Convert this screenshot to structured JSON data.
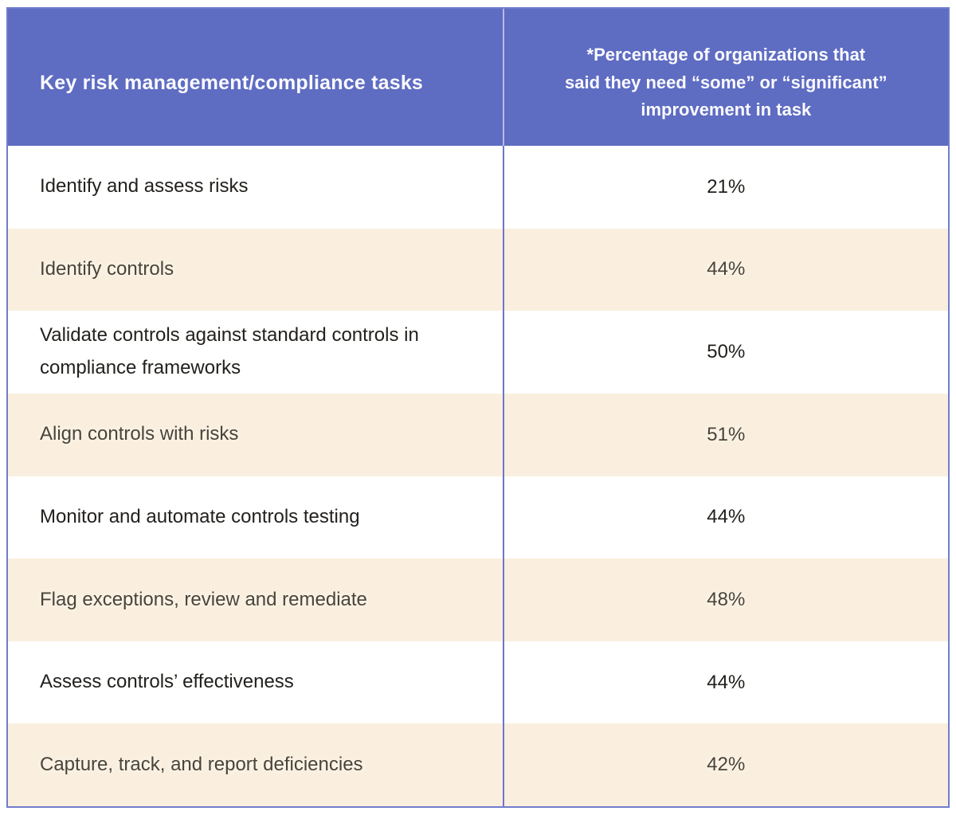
{
  "chart_data": {
    "type": "table",
    "columns": [
      "Key risk management/compliance tasks",
      "*Percentage of organizations that said they need “some” or “significant” improvement in task"
    ],
    "categories": [
      "Identify and assess risks",
      "Identify controls",
      "Validate controls against standard controls in compliance frameworks",
      "Align controls with risks",
      "Monitor and automate controls testing",
      "Flag exceptions, review and remediate",
      "Assess controls’ effectiveness",
      "Capture, track, and report deficiencies"
    ],
    "values": [
      21,
      44,
      50,
      51,
      44,
      48,
      44,
      42
    ],
    "value_unit": "%",
    "layout": "two-column table, purple header, alternating white/cream rows"
  },
  "table": {
    "header": {
      "task_label": "Key risk management/compliance tasks",
      "value_label_lines": [
        "*Percentage of organizations that",
        "said they need “some” or “significant”",
        "improvement in task"
      ]
    },
    "rows": [
      {
        "task": "Identify and assess risks",
        "value": "21%"
      },
      {
        "task": "Identify controls",
        "value": "44%"
      },
      {
        "task": "Validate controls against standard controls in compliance frameworks",
        "value": "50%"
      },
      {
        "task": "Align controls with risks",
        "value": "51%"
      },
      {
        "task": "Monitor and automate controls testing",
        "value": "44%"
      },
      {
        "task": "Flag exceptions, review and remediate",
        "value": "48%"
      },
      {
        "task": "Assess controls’ effectiveness",
        "value": "44%"
      },
      {
        "task": "Capture, track, and report deficiencies",
        "value": "42%"
      }
    ]
  },
  "colors": {
    "header_bg": "#5E6CC2",
    "border": "#707CCC",
    "body_divider": "#6B77C8",
    "row_bg": "#FFFFFF",
    "row_alt_bg": "#FAEFDE",
    "header_text": "#FAFAFD",
    "row_text": "#23211D",
    "row_alt_text": "#4A4338"
  }
}
